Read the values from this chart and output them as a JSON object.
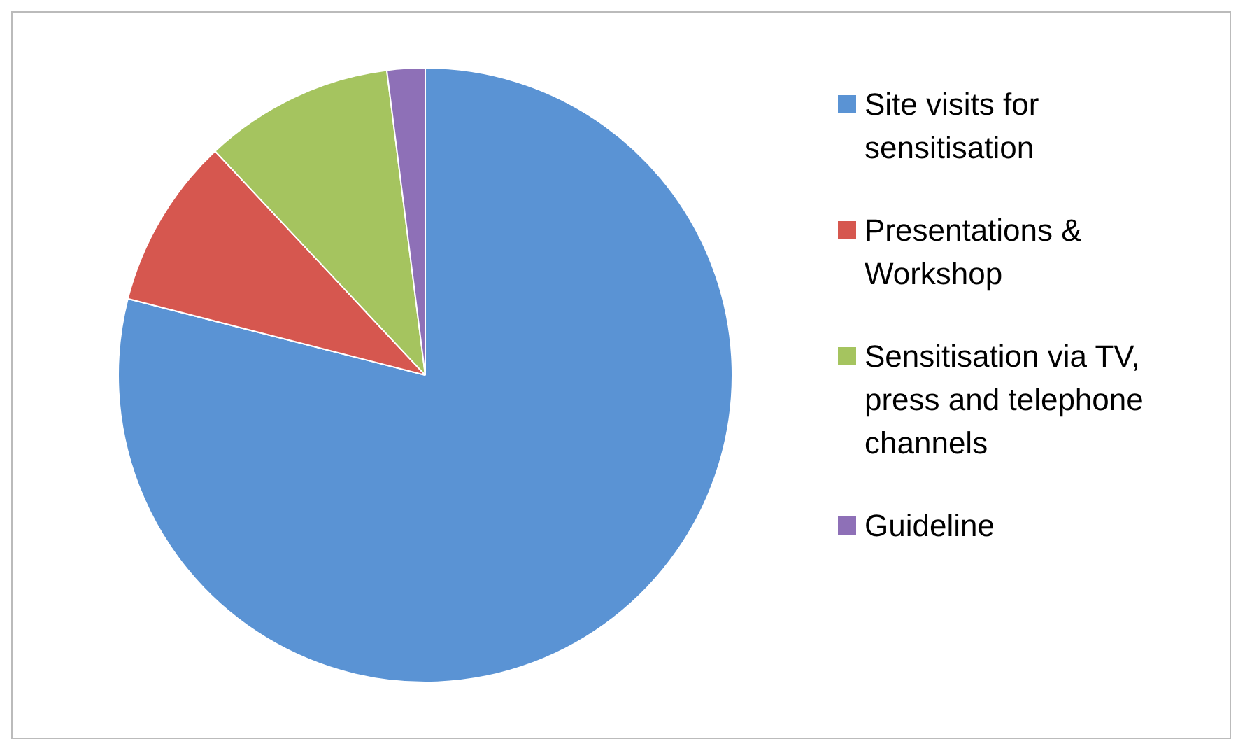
{
  "chart_data": {
    "type": "pie",
    "categories": [
      "Site visits for sensitisation",
      "Presentations & Workshop",
      "Sensitisation via TV, press and telephone channels",
      "Guideline"
    ],
    "values": [
      79,
      9,
      10,
      2
    ],
    "colors": [
      "#5a93d4",
      "#d6574f",
      "#a5c45f",
      "#8e70b7"
    ],
    "legend": "right"
  }
}
